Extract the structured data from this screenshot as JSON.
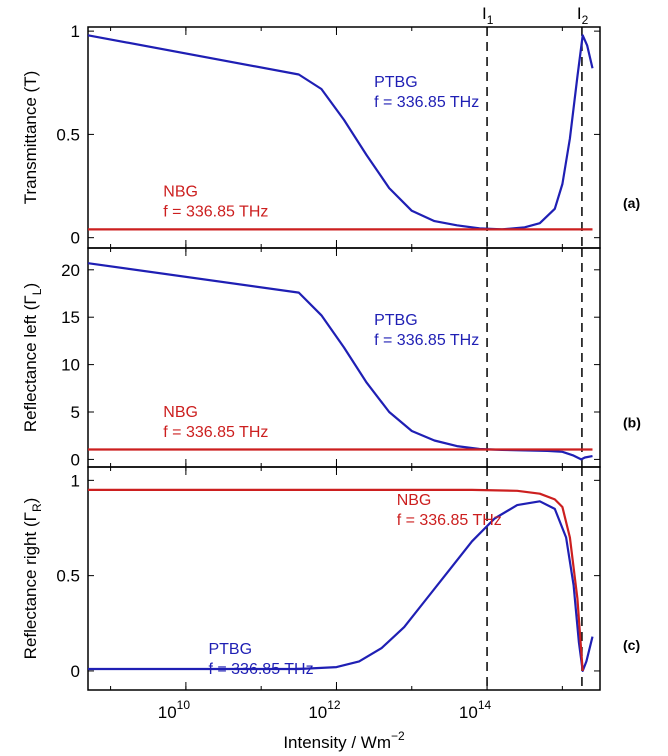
{
  "colors": {
    "ptbg": "#1f1fb4",
    "nbg": "#cc1f1f",
    "axis": "#000000"
  },
  "x_axis": {
    "label_base": "Intensity / Wm",
    "label_sup": "−2",
    "range_log10": [
      8.7,
      15.5
    ],
    "ticks": [
      {
        "value": 10,
        "base": "10",
        "exp": "10"
      },
      {
        "value": 12,
        "base": "10",
        "exp": "12"
      },
      {
        "value": 14,
        "base": "10",
        "exp": "14"
      }
    ]
  },
  "markers": [
    {
      "name": "I1",
      "main": "I",
      "sub": "1",
      "log10": 14.0
    },
    {
      "name": "I2",
      "main": "I",
      "sub": "2",
      "log10": 15.26
    }
  ],
  "chart_data": [
    {
      "type": "line",
      "panel": "(a)",
      "ylabel": "Transmittance (T)",
      "ylim": [
        -0.05,
        1.02
      ],
      "yticks": [
        {
          "v": 0,
          "t": "0"
        },
        {
          "v": 0.5,
          "t": "0.5"
        },
        {
          "v": 1,
          "t": "1"
        }
      ],
      "annotations": [
        {
          "series": "PTBG",
          "lines": [
            "PTBG",
            "f = 336.85 THz"
          ],
          "at": [
            12.5,
            0.73
          ]
        },
        {
          "series": "NBG",
          "lines": [
            "NBG",
            "f = 336.85 THz"
          ],
          "at": [
            9.7,
            0.2
          ]
        }
      ],
      "series": [
        {
          "name": "PTBG",
          "color": "#1f1fb4",
          "x": [
            8.7,
            11.5,
            11.8,
            12.1,
            12.4,
            12.7,
            13.0,
            13.3,
            13.6,
            13.9,
            14.2,
            14.5,
            14.7,
            14.9,
            15.0,
            15.1,
            15.2,
            15.27,
            15.33,
            15.4
          ],
          "y": [
            0.98,
            0.79,
            0.72,
            0.57,
            0.4,
            0.24,
            0.13,
            0.08,
            0.06,
            0.045,
            0.04,
            0.05,
            0.07,
            0.14,
            0.26,
            0.48,
            0.78,
            0.98,
            0.93,
            0.82
          ]
        },
        {
          "name": "NBG",
          "color": "#cc1f1f",
          "x": [
            8.7,
            15.4
          ],
          "y": [
            0.04,
            0.04
          ]
        }
      ]
    },
    {
      "type": "line",
      "panel": "(b)",
      "ylabel_main": "Reflectance left (Γ",
      "ylabel_sub": "L",
      "ylabel_end": ")",
      "ylim": [
        -0.8,
        22.3
      ],
      "yticks": [
        {
          "v": 0,
          "t": "0"
        },
        {
          "v": 5,
          "t": "5"
        },
        {
          "v": 10,
          "t": "10"
        },
        {
          "v": 15,
          "t": "15"
        },
        {
          "v": 20,
          "t": "20"
        }
      ],
      "annotations": [
        {
          "series": "PTBG",
          "lines": [
            "PTBG",
            "f = 336.85 THz"
          ],
          "at": [
            12.5,
            14.2
          ]
        },
        {
          "series": "NBG",
          "lines": [
            "NBG",
            "f = 336.85 THz"
          ],
          "at": [
            9.7,
            4.5
          ]
        }
      ],
      "series": [
        {
          "name": "PTBG",
          "color": "#1f1fb4",
          "x": [
            8.7,
            11.5,
            11.8,
            12.1,
            12.4,
            12.7,
            13.0,
            13.3,
            13.6,
            13.9,
            14.2,
            14.5,
            14.8,
            15.0,
            15.15,
            15.25,
            15.3,
            15.4
          ],
          "y": [
            20.7,
            17.6,
            15.2,
            11.8,
            8.1,
            5.0,
            3.0,
            2.0,
            1.4,
            1.1,
            1.0,
            0.95,
            0.9,
            0.8,
            0.4,
            0.0,
            0.2,
            0.35
          ]
        },
        {
          "name": "NBG",
          "color": "#cc1f1f",
          "x": [
            8.7,
            15.4
          ],
          "y": [
            1.05,
            1.05
          ]
        }
      ]
    },
    {
      "type": "line",
      "panel": "(c)",
      "ylabel_main": "Reflectance right (Γ",
      "ylabel_sub": "R",
      "ylabel_end": ")",
      "ylim": [
        -0.1,
        1.07
      ],
      "yticks": [
        {
          "v": 0,
          "t": "0"
        },
        {
          "v": 0.5,
          "t": "0.5"
        },
        {
          "v": 1,
          "t": "1"
        }
      ],
      "annotations": [
        {
          "series": "NBG",
          "lines": [
            "NBG",
            "f = 336.85 THz"
          ],
          "at": [
            12.8,
            0.87
          ]
        },
        {
          "series": "PTBG",
          "lines": [
            "PTBG",
            "f = 336.85 THz"
          ],
          "at": [
            10.3,
            0.09
          ]
        }
      ],
      "series": [
        {
          "name": "PTBG",
          "color": "#1f1fb4",
          "x": [
            8.7,
            11.5,
            12.0,
            12.3,
            12.6,
            12.9,
            13.2,
            13.5,
            13.8,
            14.1,
            14.4,
            14.7,
            14.9,
            15.05,
            15.15,
            15.22,
            15.27,
            15.32,
            15.4
          ],
          "y": [
            0.01,
            0.01,
            0.02,
            0.05,
            0.12,
            0.23,
            0.38,
            0.53,
            0.68,
            0.8,
            0.87,
            0.89,
            0.85,
            0.7,
            0.45,
            0.15,
            0.0,
            0.05,
            0.18
          ]
        },
        {
          "name": "NBG",
          "color": "#cc1f1f",
          "x": [
            8.7,
            13.8,
            14.4,
            14.7,
            14.9,
            15.0,
            15.1,
            15.2,
            15.27
          ],
          "y": [
            0.95,
            0.95,
            0.945,
            0.93,
            0.9,
            0.86,
            0.7,
            0.38,
            0.0
          ]
        }
      ]
    }
  ]
}
